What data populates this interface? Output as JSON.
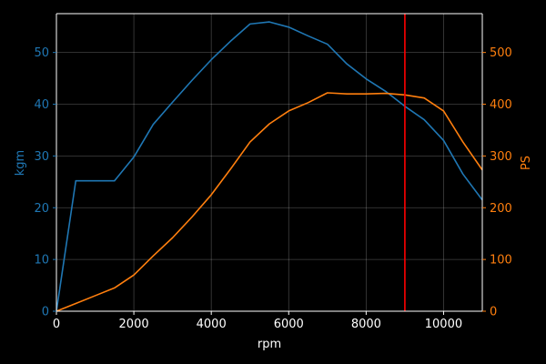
{
  "chart_data": {
    "type": "line",
    "title": "",
    "xlabel": "rpm",
    "ylabel_left": "kgm",
    "ylabel_right": "PS",
    "xlim": [
      0,
      11000
    ],
    "ylim_left": [
      0,
      57.5
    ],
    "ylim_right": [
      0,
      575
    ],
    "grid": true,
    "background": "#000000",
    "x_ticks": [
      0,
      2000,
      4000,
      6000,
      8000,
      10000
    ],
    "y_left_ticks": [
      0,
      10,
      20,
      30,
      40,
      50
    ],
    "y_right_ticks": [
      0,
      100,
      200,
      300,
      400,
      500
    ],
    "series": [
      {
        "axis": "left",
        "color": "#1f77b4",
        "x": [
          0,
          500,
          1000,
          1500,
          2000,
          2500,
          3000,
          3500,
          4000,
          4500,
          5000,
          5500,
          6000,
          6500,
          7000,
          7500,
          8000,
          8500,
          9000,
          9500,
          10000,
          10500,
          11000
        ],
        "y": [
          0,
          25.2,
          25.2,
          25.2,
          29.8,
          36.1,
          40.4,
          44.6,
          48.6,
          52.2,
          55.5,
          55.9,
          54.9,
          53.2,
          51.6,
          47.8,
          44.9,
          42.5,
          39.6,
          37.0,
          33.0,
          26.5,
          21.5
        ]
      },
      {
        "axis": "right",
        "color": "#ff7f0e",
        "x": [
          0,
          500,
          1000,
          1500,
          2000,
          2500,
          3000,
          3500,
          4000,
          4500,
          5000,
          5500,
          6000,
          6500,
          7000,
          7500,
          8000,
          8500,
          9000,
          9500,
          10000,
          10500,
          11000
        ],
        "y": [
          0,
          15,
          30,
          45,
          70,
          107,
          142,
          182,
          225,
          275,
          327,
          362,
          387,
          403,
          422,
          420,
          420,
          421,
          418,
          412,
          387,
          327,
          273
        ]
      }
    ],
    "vline": {
      "x": 9000,
      "color": "#ff0000"
    },
    "left_axis_color": "#1f77b4",
    "right_axis_color": "#ff7f0e"
  }
}
